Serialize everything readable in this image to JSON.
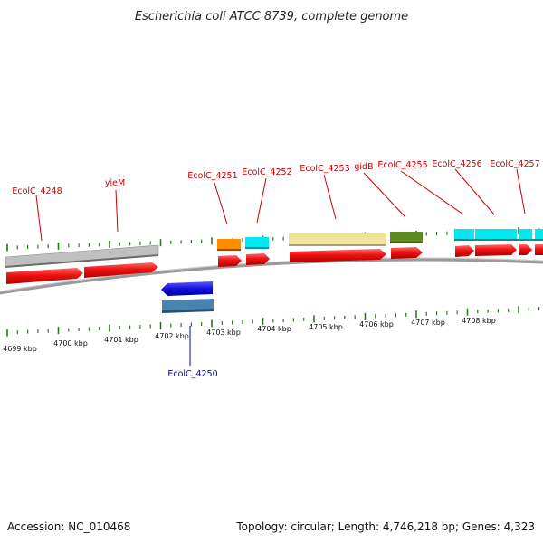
{
  "title": "Escherichia coli ATCC 8739, complete genome",
  "footer": {
    "accession": "Accession: NC_010468",
    "stats": "Topology: circular; Length: 4,746,218 bp; Genes: 4,323"
  },
  "scale": {
    "unit": "kbp",
    "tick_labels": [
      "4699 kbp",
      "4700 kbp",
      "4701 kbp",
      "4702 kbp",
      "4703 kbp",
      "4704 kbp",
      "4705 kbp",
      "4706 kbp",
      "4707 kbp",
      "4708 kbp"
    ]
  },
  "colors": {
    "cds": "#ee1111",
    "cds_reverse": "#1111dd",
    "backbone": "#888888",
    "tick": "#2a7a1a",
    "label_forward": "#cc0000",
    "label_reverse": "#0000bb"
  },
  "genes": [
    {
      "label": "EcolC_4248",
      "strand": "+",
      "feature_color": "#c0c0c0"
    },
    {
      "label": "yieM",
      "strand": "+",
      "feature_color": "#c0c0c0"
    },
    {
      "label": "EcolC_4250",
      "strand": "-",
      "feature_color": "#4a82b0"
    },
    {
      "label": "EcolC_4251",
      "strand": "+",
      "feature_color": "#ff8c00"
    },
    {
      "label": "EcolC_4252",
      "strand": "+",
      "feature_color": "#00e8f0"
    },
    {
      "label": "EcolC_4253",
      "strand": "+",
      "feature_color": "#efe39a"
    },
    {
      "label": "gidB",
      "strand": "+",
      "feature_color": "#5e8a22"
    },
    {
      "label": "EcolC_4255",
      "strand": "+",
      "feature_color": "#5e8a22"
    },
    {
      "label": "EcolC_4256",
      "strand": "+",
      "feature_color": "#00e8f0"
    },
    {
      "label": "EcolC_4257",
      "strand": "+",
      "feature_color": "#00e8f0"
    }
  ]
}
